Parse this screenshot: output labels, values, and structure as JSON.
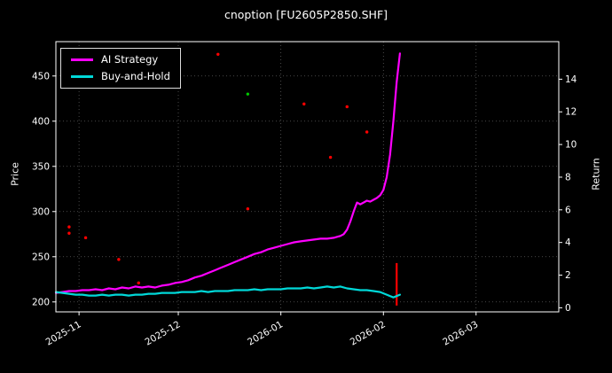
{
  "chart_data": {
    "type": "line",
    "title": "cnoption [FU2605P2850.SHF]",
    "xlabel": "",
    "ylabel_left": "Price",
    "ylabel_right": "Return",
    "grid": "dotted",
    "legend_position": "upper left",
    "x_unit": "days from 2025-10-25",
    "xlim": [
      0,
      152
    ],
    "x_ticks": [
      {
        "t": 7,
        "label": "2025-11"
      },
      {
        "t": 37,
        "label": "2025-12"
      },
      {
        "t": 68,
        "label": "2026-01"
      },
      {
        "t": 99,
        "label": "2026-02"
      },
      {
        "t": 127,
        "label": "2026-03"
      }
    ],
    "ylim_left": [
      189,
      488
    ],
    "yticks_left": [
      200,
      250,
      300,
      350,
      400,
      450
    ],
    "ylim_right": [
      -0.25,
      16.3
    ],
    "yticks_right": [
      0,
      2,
      4,
      6,
      8,
      10,
      12,
      14
    ],
    "series": [
      {
        "name": "AI Strategy",
        "color": "#ff00ff",
        "axis": "left",
        "x": [
          0,
          2,
          4,
          6,
          8,
          10,
          12,
          14,
          16,
          18,
          20,
          22,
          24,
          26,
          28,
          30,
          32,
          34,
          36,
          38,
          40,
          42,
          44,
          46,
          48,
          50,
          52,
          54,
          56,
          58,
          60,
          62,
          64,
          66,
          68,
          70,
          72,
          74,
          76,
          78,
          80,
          82,
          84,
          85,
          86,
          87,
          88,
          89,
          90,
          91,
          92,
          93,
          94,
          95,
          96,
          97,
          98,
          99,
          100,
          101,
          102,
          103,
          104
        ],
        "y": [
          210,
          211,
          212,
          212,
          213,
          213,
          214,
          213,
          215,
          214,
          216,
          215,
          217,
          216,
          217,
          216,
          218,
          219,
          221,
          222,
          224,
          227,
          229,
          232,
          235,
          238,
          241,
          244,
          247,
          250,
          253,
          255,
          258,
          260,
          262,
          264,
          266,
          267,
          268,
          269,
          270,
          270,
          271,
          272,
          273,
          275,
          280,
          289,
          300,
          310,
          308,
          310,
          312,
          311,
          313,
          315,
          318,
          324,
          338,
          363,
          400,
          443,
          475
        ]
      },
      {
        "name": "Buy-and-Hold",
        "color": "#00d8d8",
        "axis": "left",
        "x": [
          0,
          2,
          4,
          6,
          8,
          10,
          12,
          14,
          16,
          18,
          20,
          22,
          24,
          26,
          28,
          30,
          32,
          34,
          36,
          38,
          40,
          42,
          44,
          46,
          48,
          50,
          52,
          54,
          56,
          58,
          60,
          62,
          64,
          66,
          68,
          70,
          72,
          74,
          76,
          78,
          80,
          82,
          84,
          86,
          88,
          90,
          92,
          94,
          96,
          98,
          100,
          102,
          104
        ],
        "y": [
          211,
          210,
          209,
          208,
          208,
          207,
          207,
          208,
          207,
          208,
          208,
          207,
          208,
          208,
          209,
          209,
          210,
          210,
          210,
          211,
          211,
          211,
          212,
          211,
          212,
          212,
          212,
          213,
          213,
          213,
          214,
          213,
          214,
          214,
          214,
          215,
          215,
          215,
          216,
          215,
          216,
          217,
          216,
          217,
          215,
          214,
          213,
          213,
          212,
          211,
          208,
          205,
          208
        ]
      }
    ],
    "scatter_points": [
      {
        "color": "#ff0000",
        "x": 4,
        "y": 283
      },
      {
        "color": "#ff0000",
        "x": 4,
        "y": 276
      },
      {
        "color": "#ff0000",
        "x": 9,
        "y": 271
      },
      {
        "color": "#ff0000",
        "x": 19,
        "y": 247
      },
      {
        "color": "#ff0000",
        "x": 25,
        "y": 221
      },
      {
        "color": "#ff0000",
        "x": 49,
        "y": 474
      },
      {
        "color": "#ff0000",
        "x": 58,
        "y": 303
      },
      {
        "color": "#ff0000",
        "x": 75,
        "y": 419
      },
      {
        "color": "#ff0000",
        "x": 83,
        "y": 360
      },
      {
        "color": "#ff0000",
        "x": 88,
        "y": 416
      },
      {
        "color": "#ff0000",
        "x": 94,
        "y": 388
      },
      {
        "color": "#00c800",
        "x": 58,
        "y": 430
      }
    ],
    "vertical_segment": {
      "color": "#ff0000",
      "x": 103,
      "y_from": 196,
      "y_to": 243
    }
  }
}
